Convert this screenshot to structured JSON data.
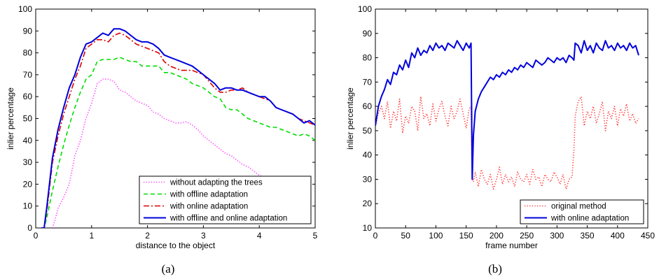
{
  "figure": {
    "captions": [
      "(a)",
      "(b)"
    ]
  },
  "chart_data": [
    {
      "type": "line",
      "xlabel": "distance to the object",
      "ylabel": "inlier percentage",
      "xlim": [
        0,
        5
      ],
      "ylim": [
        0,
        100
      ],
      "xticks": [
        "0",
        "1",
        "2",
        "3",
        "4",
        "5"
      ],
      "yticks": [
        "0",
        "10",
        "20",
        "30",
        "40",
        "50",
        "60",
        "70",
        "80",
        "90",
        "100"
      ],
      "grid": false,
      "legend_position": "bottom-right",
      "series": [
        {
          "name": "without adapting the trees",
          "color": "#ff33ff",
          "style": "dotted",
          "x": [
            0.3,
            0.35,
            0.4,
            0.5,
            0.6,
            0.7,
            0.8,
            0.9,
            1.0,
            1.1,
            1.2,
            1.3,
            1.4,
            1.5,
            1.6,
            1.7,
            1.8,
            1.9,
            2.0,
            2.1,
            2.2,
            2.3,
            2.4,
            2.5,
            2.6,
            2.7,
            2.8,
            2.9,
            3.0,
            3.1,
            3.2,
            3.3,
            3.4,
            3.5,
            3.6,
            3.7,
            3.8,
            3.9,
            4.0,
            4.1,
            4.2,
            4.3,
            4.4,
            4.5
          ],
          "y": [
            0,
            4,
            9,
            14,
            20,
            33,
            40,
            50,
            57,
            66,
            68,
            68,
            67,
            63,
            62,
            60,
            58,
            57,
            56,
            53,
            52,
            50,
            49,
            48,
            48,
            48.5,
            47,
            45,
            42,
            40,
            38,
            36,
            34,
            33,
            31,
            29,
            28,
            26,
            24,
            23,
            22,
            21.5,
            21,
            20
          ]
        },
        {
          "name": "with offline adaptation",
          "color": "#00dd00",
          "style": "dashed",
          "x": [
            0.1,
            0.15,
            0.2,
            0.3,
            0.4,
            0.5,
            0.6,
            0.7,
            0.8,
            0.9,
            1.0,
            1.1,
            1.2,
            1.3,
            1.4,
            1.5,
            1.6,
            1.7,
            1.8,
            1.9,
            2.0,
            2.1,
            2.2,
            2.3,
            2.4,
            2.5,
            2.6,
            2.7,
            2.8,
            2.9,
            3.0,
            3.1,
            3.2,
            3.3,
            3.4,
            3.5,
            3.6,
            3.7,
            3.8,
            3.9,
            4.0,
            4.1,
            4.2,
            4.3,
            4.4,
            4.5,
            4.6,
            4.7,
            4.8,
            4.9,
            5.0
          ],
          "y": [
            0,
            0,
            5,
            17,
            28,
            38,
            47,
            55,
            62,
            68,
            70,
            76,
            77,
            77,
            77,
            78,
            77,
            76,
            76,
            74,
            74,
            74,
            74,
            71,
            71,
            70,
            69,
            68,
            66,
            65,
            64,
            62,
            60,
            59,
            55,
            54,
            54,
            52,
            50,
            49,
            48,
            47,
            46,
            46,
            45,
            44,
            43,
            42,
            43,
            42,
            40
          ]
        },
        {
          "name": "with online adaptation",
          "color": "#dd0000",
          "style": "dashdot",
          "x": [
            0.1,
            0.15,
            0.2,
            0.3,
            0.4,
            0.5,
            0.6,
            0.7,
            0.8,
            0.9,
            1.0,
            1.1,
            1.2,
            1.3,
            1.4,
            1.5,
            1.6,
            1.7,
            1.8,
            1.9,
            2.0,
            2.1,
            2.2,
            2.3,
            2.4,
            2.5,
            2.6,
            2.7,
            2.8,
            2.9,
            3.0,
            3.1,
            3.2,
            3.3,
            3.4,
            3.5,
            3.6,
            3.7,
            3.8,
            3.9,
            4.0,
            4.1,
            4.2,
            4.3,
            4.4,
            4.5,
            4.6,
            4.7,
            4.8,
            4.9,
            5.0
          ],
          "y": [
            0,
            0,
            8,
            30,
            42,
            52,
            60,
            68,
            74,
            82,
            84,
            86,
            86,
            85,
            88,
            89,
            88,
            86,
            84,
            83,
            82,
            81,
            80,
            76,
            74,
            73,
            72,
            72,
            72,
            71,
            70,
            67,
            64,
            62,
            62,
            63,
            63,
            64,
            62,
            61,
            60,
            59,
            58,
            55,
            54,
            53,
            52,
            50,
            49,
            48,
            47
          ]
        },
        {
          "name": "with offline and online adaptation",
          "color": "#0000dd",
          "style": "solid",
          "x": [
            0.1,
            0.15,
            0.2,
            0.3,
            0.4,
            0.5,
            0.6,
            0.7,
            0.8,
            0.9,
            1.0,
            1.1,
            1.2,
            1.3,
            1.4,
            1.5,
            1.6,
            1.7,
            1.8,
            1.9,
            2.0,
            2.1,
            2.2,
            2.3,
            2.4,
            2.5,
            2.6,
            2.7,
            2.8,
            2.9,
            3.0,
            3.1,
            3.2,
            3.3,
            3.4,
            3.5,
            3.6,
            3.7,
            3.8,
            3.9,
            4.0,
            4.1,
            4.2,
            4.3,
            4.4,
            4.5,
            4.6,
            4.7,
            4.8,
            4.9,
            5.0
          ],
          "y": [
            0,
            0,
            10,
            32,
            45,
            55,
            64,
            70,
            78,
            84,
            85,
            87,
            89,
            88,
            91,
            91,
            90,
            88,
            86,
            85,
            85,
            84,
            82,
            79,
            78,
            77,
            76,
            75,
            74,
            72,
            70,
            68,
            66,
            63,
            64,
            64,
            63,
            63,
            62,
            61,
            60,
            60,
            58,
            55,
            54,
            53,
            52,
            50,
            48,
            49,
            47
          ]
        }
      ]
    },
    {
      "type": "line",
      "xlabel": "frame number",
      "ylabel": "inlier percentage",
      "xlim": [
        0,
        450
      ],
      "ylim": [
        10,
        100
      ],
      "xticks": [
        "0",
        "50",
        "100",
        "150",
        "200",
        "250",
        "300",
        "350",
        "400",
        "450"
      ],
      "yticks": [
        "10",
        "20",
        "30",
        "40",
        "50",
        "60",
        "70",
        "80",
        "90",
        "100"
      ],
      "grid": false,
      "legend_position": "bottom-right",
      "series": [
        {
          "name": "original method",
          "color": "#ff3333",
          "style": "dotted",
          "x": [
            0,
            5,
            10,
            15,
            20,
            25,
            30,
            35,
            40,
            45,
            50,
            55,
            60,
            65,
            70,
            75,
            80,
            85,
            90,
            95,
            100,
            105,
            110,
            115,
            120,
            125,
            130,
            135,
            140,
            145,
            150,
            155,
            158,
            160,
            162,
            165,
            170,
            175,
            180,
            185,
            190,
            195,
            200,
            205,
            210,
            215,
            220,
            225,
            230,
            235,
            240,
            245,
            250,
            255,
            260,
            265,
            270,
            275,
            280,
            285,
            290,
            295,
            300,
            305,
            310,
            315,
            320,
            325,
            328,
            330,
            335,
            340,
            345,
            350,
            355,
            360,
            365,
            370,
            375,
            380,
            385,
            390,
            395,
            400,
            405,
            410,
            415,
            420,
            425,
            430,
            435
          ],
          "y": [
            52,
            57,
            60,
            55,
            62,
            51,
            58,
            54,
            63,
            49,
            56,
            53,
            60,
            58,
            50,
            64,
            55,
            57,
            52,
            61,
            54,
            59,
            62,
            56,
            52,
            60,
            55,
            58,
            63,
            57,
            51,
            59,
            60,
            31,
            29,
            33,
            27,
            34,
            30,
            28,
            32,
            26,
            30,
            35,
            28,
            32,
            29,
            31,
            27,
            33,
            30,
            29,
            32,
            28,
            34,
            30,
            31,
            27,
            32,
            30,
            29,
            33,
            31,
            28,
            32,
            26,
            30,
            31,
            42,
            56,
            62,
            64,
            52,
            58,
            55,
            60,
            53,
            57,
            62,
            50,
            58,
            55,
            60,
            52,
            59,
            56,
            61,
            54,
            57,
            53,
            55
          ]
        },
        {
          "name": "with online adaptation",
          "color": "#0000dd",
          "style": "solid",
          "x": [
            0,
            5,
            10,
            15,
            20,
            25,
            30,
            35,
            40,
            45,
            50,
            55,
            60,
            65,
            70,
            75,
            80,
            85,
            90,
            95,
            100,
            105,
            110,
            115,
            120,
            125,
            130,
            135,
            140,
            145,
            150,
            155,
            158,
            160,
            162,
            165,
            170,
            175,
            180,
            185,
            190,
            195,
            200,
            205,
            210,
            215,
            220,
            225,
            230,
            235,
            240,
            245,
            250,
            255,
            260,
            265,
            270,
            275,
            280,
            285,
            290,
            295,
            300,
            305,
            310,
            315,
            320,
            325,
            328,
            330,
            335,
            340,
            345,
            350,
            355,
            360,
            365,
            370,
            375,
            380,
            385,
            390,
            395,
            400,
            405,
            410,
            415,
            420,
            425,
            430,
            435
          ],
          "y": [
            52,
            60,
            64,
            67,
            71,
            69,
            74,
            73,
            77,
            75,
            79,
            76,
            82,
            80,
            84,
            81,
            83,
            82,
            85,
            83,
            86,
            84,
            85,
            83,
            86,
            85,
            84,
            87,
            85,
            83,
            86,
            84,
            86,
            30,
            48,
            58,
            63,
            66,
            68,
            70,
            72,
            71,
            73,
            72,
            74,
            73,
            75,
            74,
            76,
            75,
            77,
            76,
            78,
            77,
            76,
            79,
            78,
            77,
            78,
            80,
            79,
            78,
            80,
            79,
            80,
            78,
            81,
            80,
            79,
            86,
            85,
            82,
            87,
            83,
            85,
            82,
            86,
            84,
            83,
            87,
            84,
            85,
            83,
            86,
            84,
            85,
            83,
            86,
            84,
            85,
            81
          ]
        }
      ]
    }
  ]
}
